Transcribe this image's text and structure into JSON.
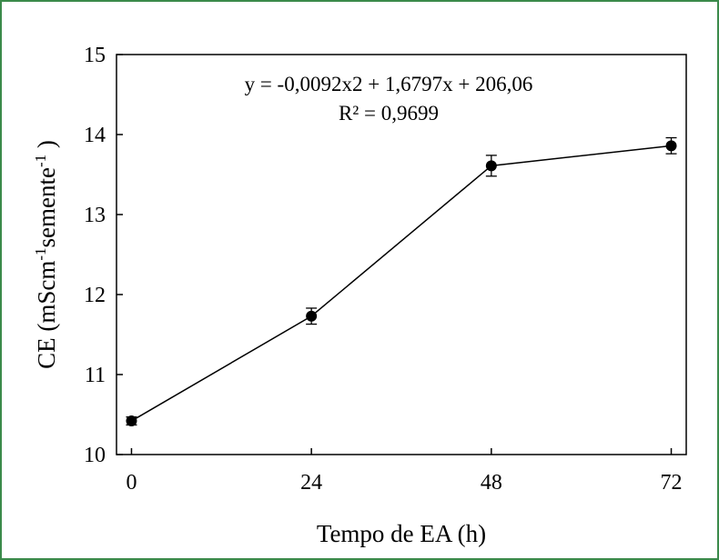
{
  "chart_data": {
    "type": "line",
    "title": "",
    "xlabel": "Tempo de EA (h)",
    "ylabel": {
      "prefix": "CE (mScm",
      "sup1": "-1",
      "middle": "semente",
      "sup2": "-1",
      "suffix": " )"
    },
    "x": [
      0,
      24,
      48,
      72
    ],
    "series": [
      {
        "values": [
          10.42,
          11.73,
          13.61,
          13.86
        ],
        "errors": [
          0.05,
          0.1,
          0.13,
          0.1
        ]
      }
    ],
    "xlim": [
      -2,
      74
    ],
    "ylim": [
      10,
      15
    ],
    "xticks": [
      "0",
      "24",
      "48",
      "72"
    ],
    "yticks": [
      "10",
      "11",
      "12",
      "13",
      "14",
      "15"
    ],
    "grid": false,
    "legend": "none",
    "annotations": {
      "equation": "y = -0,0092x2 + 1,6797x + 206,06",
      "r2": "R² = 0,9699"
    },
    "colors": {
      "line": "#000000",
      "marker": "#000000",
      "frame": "#3b8a4a"
    }
  }
}
